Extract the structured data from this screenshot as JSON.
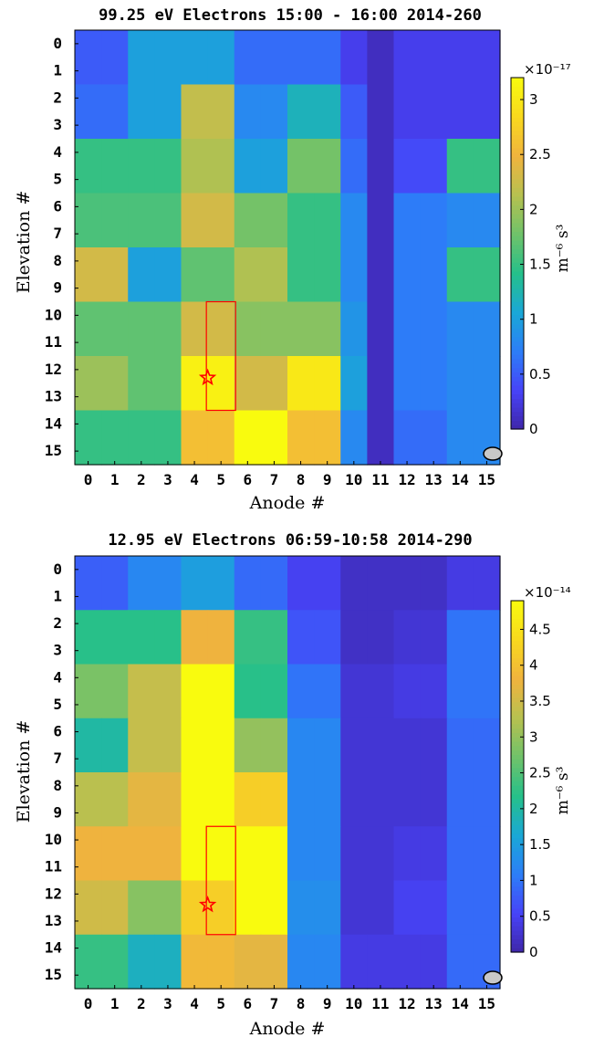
{
  "colormap": [
    "#3e26a8",
    "#4743f8",
    "#2c7ef8",
    "#1aa8d6",
    "#25c08a",
    "#70c26a",
    "#b7c150",
    "#f0b33e",
    "#f9d91e",
    "#f9fb0e"
  ],
  "marker": {
    "color": "#ff0000"
  },
  "chart_data": [
    {
      "type": "heatmap",
      "title": "99.25  eV  Electrons  15:00  -  16:00  2014-260",
      "xlabel": "Anode #",
      "ylabel": "Elevation #",
      "x_categories": [
        "0",
        "1",
        "2",
        "3",
        "4",
        "5",
        "6",
        "7",
        "8",
        "9",
        "10",
        "11",
        "12",
        "13",
        "14",
        "15"
      ],
      "y_categories": [
        "0",
        "1",
        "2",
        "3",
        "4",
        "5",
        "6",
        "7",
        "8",
        "9",
        "10",
        "11",
        "12",
        "13",
        "14",
        "15"
      ],
      "colorbar": {
        "label": "m⁻⁶ s³",
        "multiplier": "×10⁻¹⁷",
        "range": [
          0,
          3.2
        ],
        "ticks": [
          "0",
          "0.5",
          "1",
          "1.5",
          "2",
          "2.5",
          "3"
        ],
        "tick_values": [
          0,
          0.5,
          1,
          1.5,
          2,
          2.5,
          3
        ]
      },
      "grid": [
        [
          0.5,
          0.5,
          1.0,
          1.0,
          1.0,
          1.0,
          0.6,
          0.6,
          0.6,
          0.6,
          0.3,
          0.1,
          0.3,
          0.3,
          0.3,
          0.3
        ],
        [
          0.6,
          0.6,
          1.0,
          1.0,
          2.2,
          2.2,
          0.8,
          0.8,
          1.2,
          1.2,
          0.5,
          0.1,
          0.3,
          0.3,
          0.3,
          0.3
        ],
        [
          1.5,
          1.5,
          1.5,
          1.5,
          2.1,
          2.1,
          1.0,
          1.0,
          1.8,
          1.8,
          0.6,
          0.1,
          0.4,
          0.4,
          1.5,
          1.5
        ],
        [
          1.6,
          1.6,
          1.6,
          1.6,
          2.3,
          2.3,
          1.8,
          1.8,
          1.5,
          1.5,
          0.8,
          0.1,
          0.7,
          0.7,
          0.8,
          0.8
        ],
        [
          2.3,
          2.3,
          1.0,
          1.0,
          1.7,
          1.7,
          2.1,
          2.1,
          1.5,
          1.5,
          0.8,
          0.1,
          0.7,
          0.7,
          1.5,
          1.5
        ],
        [
          1.7,
          1.7,
          1.7,
          1.7,
          2.3,
          2.3,
          1.9,
          1.9,
          1.9,
          1.9,
          0.9,
          0.1,
          0.7,
          0.7,
          0.8,
          0.8
        ],
        [
          2.0,
          2.0,
          1.7,
          1.7,
          3.1,
          3.1,
          2.3,
          2.3,
          3.0,
          3.0,
          1.0,
          0.1,
          0.7,
          0.7,
          0.8,
          0.8
        ],
        [
          1.5,
          1.5,
          1.5,
          1.5,
          2.6,
          2.6,
          3.2,
          3.2,
          2.6,
          2.6,
          0.8,
          0.1,
          0.6,
          0.6,
          0.8,
          0.8
        ]
      ],
      "row_heights": [
        2,
        2,
        2,
        2,
        2,
        2,
        2,
        2
      ],
      "col_widths": [
        2,
        2,
        2,
        2,
        2,
        2,
        1,
        1,
        2,
        2,
        1,
        1,
        2,
        2,
        1,
        1
      ],
      "highlight_box": {
        "x0": 5,
        "x1": 6,
        "y0": 10,
        "y1": 14
      },
      "star": {
        "x": 5,
        "y": 12.8
      }
    },
    {
      "type": "heatmap",
      "title": "12.95  eV  Electrons  06:59-10:58  2014-290",
      "xlabel": "Anode #",
      "ylabel": "Elevation #",
      "x_categories": [
        "0",
        "1",
        "2",
        "3",
        "4",
        "5",
        "6",
        "7",
        "8",
        "9",
        "10",
        "11",
        "12",
        "13",
        "14",
        "15"
      ],
      "y_categories": [
        "0",
        "1",
        "2",
        "3",
        "4",
        "5",
        "6",
        "7",
        "8",
        "9",
        "10",
        "11",
        "12",
        "13",
        "14",
        "15"
      ],
      "colorbar": {
        "label": "m⁻⁶ s³",
        "multiplier": "×10⁻¹⁴",
        "range": [
          0,
          4.9
        ],
        "ticks": [
          "0",
          "0.5",
          "1",
          "1.5",
          "2",
          "2.5",
          "3",
          "3.5",
          "4",
          "4.5"
        ],
        "tick_values": [
          0,
          0.5,
          1,
          1.5,
          2,
          2.5,
          3,
          3.5,
          4,
          4.5
        ]
      },
      "grid": [
        [
          0.8,
          0.8,
          1.2,
          1.2,
          1.5,
          1.5,
          0.9,
          0.9,
          0.5,
          0.5,
          0.2,
          0.2,
          0.2,
          0.2,
          0.4,
          0.4
        ],
        [
          2.2,
          2.2,
          2.2,
          2.2,
          3.8,
          3.8,
          2.3,
          2.3,
          0.7,
          0.7,
          0.2,
          0.2,
          0.3,
          0.3,
          1.0,
          1.0
        ],
        [
          2.8,
          2.8,
          3.4,
          3.4,
          4.9,
          4.9,
          2.2,
          2.2,
          1.0,
          1.0,
          0.3,
          0.3,
          0.4,
          0.4,
          1.0,
          1.0
        ],
        [
          2.0,
          2.0,
          3.4,
          3.4,
          4.9,
          4.9,
          3.0,
          3.0,
          1.2,
          1.2,
          0.3,
          0.3,
          0.3,
          0.3,
          0.9,
          0.9
        ],
        [
          3.3,
          3.3,
          3.7,
          3.7,
          4.9,
          4.9,
          4.2,
          4.2,
          1.2,
          1.2,
          0.3,
          0.3,
          0.3,
          0.3,
          0.9,
          0.9
        ],
        [
          3.8,
          3.8,
          3.8,
          3.8,
          4.9,
          4.9,
          4.9,
          4.9,
          1.2,
          1.2,
          0.3,
          0.3,
          0.4,
          0.4,
          0.9,
          0.9
        ],
        [
          3.5,
          3.5,
          2.9,
          2.9,
          4.2,
          4.2,
          4.9,
          4.9,
          1.3,
          1.3,
          0.3,
          0.3,
          0.5,
          0.5,
          0.9,
          0.9
        ],
        [
          2.3,
          2.3,
          1.8,
          1.8,
          3.9,
          3.9,
          3.7,
          3.7,
          1.2,
          1.2,
          0.4,
          0.4,
          0.4,
          0.4,
          0.9,
          0.9
        ]
      ],
      "row_heights": [
        2,
        2,
        2,
        2,
        2,
        2,
        2,
        2
      ],
      "col_widths": [
        2,
        2,
        2,
        2,
        2,
        2,
        2,
        2,
        2,
        2,
        2,
        2,
        2,
        2,
        2,
        2
      ],
      "highlight_box": {
        "x0": 5,
        "x1": 6,
        "y0": 10,
        "y1": 14
      },
      "star": {
        "x": 5,
        "y": 12.9
      }
    }
  ]
}
